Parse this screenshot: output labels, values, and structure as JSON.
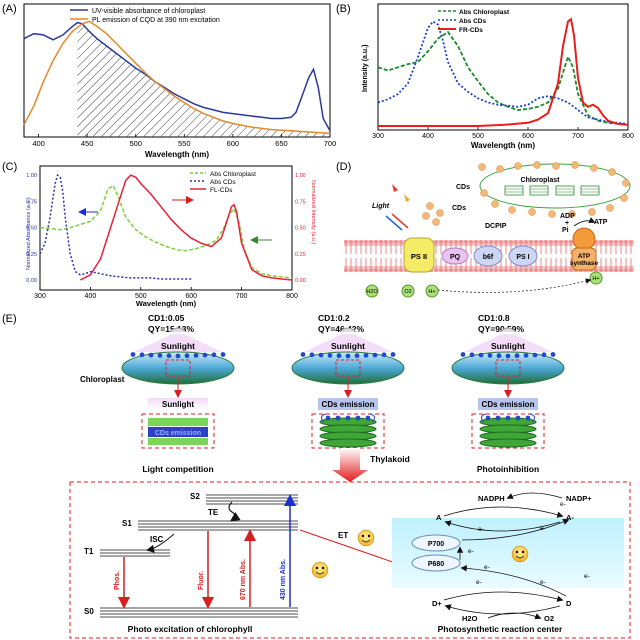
{
  "panels": {
    "A": {
      "label": "(A)",
      "legend": [
        "UV-visible absorbance of chloroplast",
        "PL emission of CQD at 390 nm excitation"
      ],
      "xlabel": "Wavelength (nm)",
      "xticks": [
        "400",
        "450",
        "500",
        "550",
        "600",
        "650",
        "700"
      ]
    },
    "B": {
      "label": "(B)",
      "legend": [
        "Abs Chloroplast",
        "Abs CDs",
        "FR-CDs"
      ],
      "ylabel": "Intensity (a.u.)",
      "xlabel": "Wavelength (nm)",
      "xticks": [
        "300",
        "400",
        "500",
        "600",
        "700",
        "800"
      ]
    },
    "C": {
      "label": "(C)",
      "legend": [
        "Abs Chloroplast",
        "Abs CDs",
        "FL-CDs"
      ],
      "ylabel_left": "Normalized Absorbance (a.u.)",
      "ylabel_right": "Normalized Intensity (a.u.)",
      "xlabel": "Wavelength (nm)",
      "xticks": [
        "300",
        "400",
        "500",
        "600",
        "700",
        "800"
      ],
      "yticks": [
        "0.00",
        "0.25",
        "0.50",
        "0.75",
        "1.00"
      ]
    },
    "D": {
      "label": "(D)",
      "chloroplast": "Chloroplast",
      "cds1": "CDs",
      "cds2": "CDs",
      "light": "Light",
      "adp": "ADP",
      "plus": "+",
      "pi": "Pi",
      "atp": "ATP",
      "dcpip": "DCPIP",
      "ps2": "PS II",
      "pq": "PQ",
      "b6f": "b6f",
      "ps1": "PS I",
      "atp_synthase": [
        "ATP",
        "synthase"
      ],
      "h2o": "H2O",
      "o2": "O2",
      "hplus1": "H+",
      "hplus2": "H+"
    },
    "E": {
      "label": "(E)",
      "cases": [
        {
          "ratio": "CD1:0.05",
          "qy": "QY=15.13%",
          "sun": "Sunlight",
          "box": "Sunlight",
          "stack_label": "CDs emission",
          "caption": "Light competition"
        },
        {
          "ratio": "CD1:0.2",
          "qy": "QY=46.42%",
          "sun": "Sunlight",
          "box": "CDs emission",
          "caption": "Thylakoid"
        },
        {
          "ratio": "CD1:0.8",
          "qy": "QY=90.59%",
          "sun": "Sunlight",
          "box": "CDs emission",
          "caption": "Photoinhibition"
        }
      ],
      "chloroplast_label": "Chloroplast",
      "jablonski": {
        "s2": "S2",
        "s1": "S1",
        "t1": "T1",
        "s0": "S0",
        "te": "TE",
        "isc": "ISC",
        "phos": "Phos.",
        "fluor": "Fluor.",
        "abs670": "670 nm Abs.",
        "abs430": "430 nm Abs.",
        "caption": "Photo excitation of chlorophyll",
        "et": "ET"
      },
      "reaction": {
        "nadph": "NADPH",
        "nadp": "NADP+",
        "a": "A",
        "aminus": "A-",
        "p700": "P700",
        "p680": "P680",
        "dplus": "D+",
        "d": "D",
        "h2o": "H2O",
        "o2": "O2",
        "eminus": "e-",
        "caption": "Photosynthetic reaction center"
      }
    }
  },
  "chart_data": [
    {
      "type": "line",
      "panel": "A",
      "xlabel": "Wavelength (nm)",
      "xlim": [
        385,
        700
      ],
      "series": [
        {
          "name": "UV-visible absorbance of chloroplast",
          "color": "#2b3a9e",
          "x": [
            385,
            395,
            405,
            415,
            425,
            435,
            440,
            445,
            452,
            460,
            470,
            480,
            490,
            500,
            510,
            520,
            530,
            540,
            550,
            560,
            570,
            580,
            590,
            600,
            610,
            620,
            630,
            640,
            650,
            660,
            665,
            672,
            678,
            683,
            688,
            693,
            700
          ],
          "y": [
            0.8,
            0.84,
            0.83,
            0.79,
            0.83,
            0.9,
            0.93,
            0.92,
            0.86,
            0.8,
            0.74,
            0.68,
            0.62,
            0.56,
            0.51,
            0.45,
            0.4,
            0.35,
            0.31,
            0.27,
            0.24,
            0.22,
            0.2,
            0.19,
            0.18,
            0.17,
            0.16,
            0.15,
            0.15,
            0.16,
            0.2,
            0.35,
            0.48,
            0.55,
            0.4,
            0.15,
            0.05
          ]
        },
        {
          "name": "PL emission of CQD at 390 nm excitation",
          "color": "#e08a2c",
          "x": [
            385,
            395,
            405,
            415,
            425,
            435,
            445,
            452,
            460,
            470,
            480,
            490,
            500,
            510,
            520,
            530,
            540,
            550,
            560,
            570,
            580,
            590,
            600,
            620,
            640,
            660,
            680,
            700
          ],
          "y": [
            0.1,
            0.25,
            0.45,
            0.62,
            0.76,
            0.86,
            0.92,
            0.94,
            0.9,
            0.84,
            0.76,
            0.68,
            0.6,
            0.52,
            0.45,
            0.39,
            0.33,
            0.28,
            0.23,
            0.19,
            0.16,
            0.13,
            0.11,
            0.08,
            0.06,
            0.05,
            0.04,
            0.03
          ]
        }
      ]
    },
    {
      "type": "line",
      "panel": "B",
      "xlabel": "Wavelength (nm)",
      "ylabel": "Intensity (a.u.)",
      "xlim": [
        300,
        800
      ],
      "series": [
        {
          "name": "Abs Chloroplast",
          "color": "#1a8a2a",
          "x": [
            300,
            320,
            340,
            360,
            380,
            400,
            420,
            440,
            460,
            480,
            500,
            520,
            540,
            560,
            580,
            600,
            620,
            640,
            660,
            670,
            680,
            690,
            700,
            720,
            740,
            760,
            780,
            800
          ],
          "y": [
            0.55,
            0.52,
            0.55,
            0.58,
            0.6,
            0.7,
            0.82,
            0.88,
            0.75,
            0.55,
            0.42,
            0.3,
            0.22,
            0.18,
            0.15,
            0.16,
            0.18,
            0.22,
            0.35,
            0.5,
            0.65,
            0.55,
            0.3,
            0.1,
            0.05,
            0.03,
            0.02,
            0.02
          ]
        },
        {
          "name": "Abs CDs",
          "color": "#1d3fd1",
          "x": [
            300,
            320,
            340,
            360,
            380,
            400,
            410,
            420,
            430,
            440,
            460,
            480,
            500,
            520,
            540,
            560,
            580,
            600,
            620,
            640,
            660,
            680,
            700,
            720,
            760,
            800
          ],
          "y": [
            0.22,
            0.25,
            0.3,
            0.4,
            0.65,
            0.92,
            0.98,
            0.95,
            0.8,
            0.6,
            0.4,
            0.32,
            0.26,
            0.22,
            0.2,
            0.19,
            0.18,
            0.2,
            0.26,
            0.28,
            0.26,
            0.22,
            0.15,
            0.08,
            0.04,
            0.02
          ]
        },
        {
          "name": "FR-CDs",
          "color": "#e81e1e",
          "x": [
            300,
            400,
            500,
            550,
            600,
            620,
            640,
            660,
            670,
            680,
            686,
            692,
            700,
            710,
            720,
            730,
            740,
            750,
            760,
            780,
            800
          ],
          "y": [
            0.0,
            0.0,
            0.0,
            0.01,
            0.03,
            0.06,
            0.12,
            0.4,
            0.75,
            0.98,
            1.0,
            0.85,
            0.45,
            0.22,
            0.18,
            0.2,
            0.17,
            0.1,
            0.05,
            0.02,
            0.01
          ]
        }
      ]
    },
    {
      "type": "line",
      "panel": "C",
      "xlabel": "Wavelength (nm)",
      "ylabel": "Normalized Absorbance (a.u.)",
      "xlim": [
        300,
        800
      ],
      "ylim": [
        0,
        1.05
      ],
      "series": [
        {
          "name": "Abs Chloroplast",
          "color": "#7ed03a",
          "x": [
            300,
            320,
            340,
            360,
            380,
            400,
            420,
            435,
            445,
            455,
            470,
            490,
            510,
            530,
            550,
            570,
            590,
            610,
            630,
            650,
            665,
            675,
            685,
            695,
            705,
            720,
            740,
            760,
            780,
            800
          ],
          "y": [
            0.5,
            0.49,
            0.48,
            0.5,
            0.53,
            0.56,
            0.66,
            0.87,
            0.9,
            0.8,
            0.6,
            0.48,
            0.41,
            0.36,
            0.32,
            0.29,
            0.28,
            0.3,
            0.33,
            0.38,
            0.5,
            0.62,
            0.68,
            0.55,
            0.3,
            0.12,
            0.06,
            0.04,
            0.03,
            0.02
          ]
        },
        {
          "name": "Abs CDs",
          "color": "#2b2fb0",
          "x": [
            300,
            310,
            320,
            330,
            335,
            340,
            345,
            350,
            360,
            370,
            380,
            390,
            400,
            420,
            440,
            460,
            480,
            500,
            520,
            540,
            560,
            580,
            600
          ],
          "y": [
            0.25,
            0.35,
            0.6,
            0.92,
            1.0,
            0.98,
            0.85,
            0.6,
            0.25,
            0.08,
            0.05,
            0.06,
            0.08,
            0.06,
            0.04,
            0.03,
            0.02,
            0.02,
            0.02,
            0.01,
            0.01,
            0.01,
            0.01
          ]
        },
        {
          "name": "FL-CDs",
          "color": "#e8213b",
          "x": [
            380,
            400,
            420,
            440,
            460,
            470,
            480,
            490,
            500,
            520,
            540,
            560,
            580,
            600,
            620,
            640,
            660,
            670,
            680,
            685,
            690,
            700,
            720,
            740,
            760,
            780,
            800
          ],
          "y": [
            0.0,
            0.05,
            0.2,
            0.5,
            0.8,
            0.95,
            1.0,
            0.98,
            0.92,
            0.82,
            0.7,
            0.58,
            0.48,
            0.4,
            0.35,
            0.32,
            0.4,
            0.55,
            0.7,
            0.72,
            0.65,
            0.35,
            0.1,
            0.04,
            0.02,
            0.01,
            0.0
          ]
        }
      ]
    }
  ]
}
